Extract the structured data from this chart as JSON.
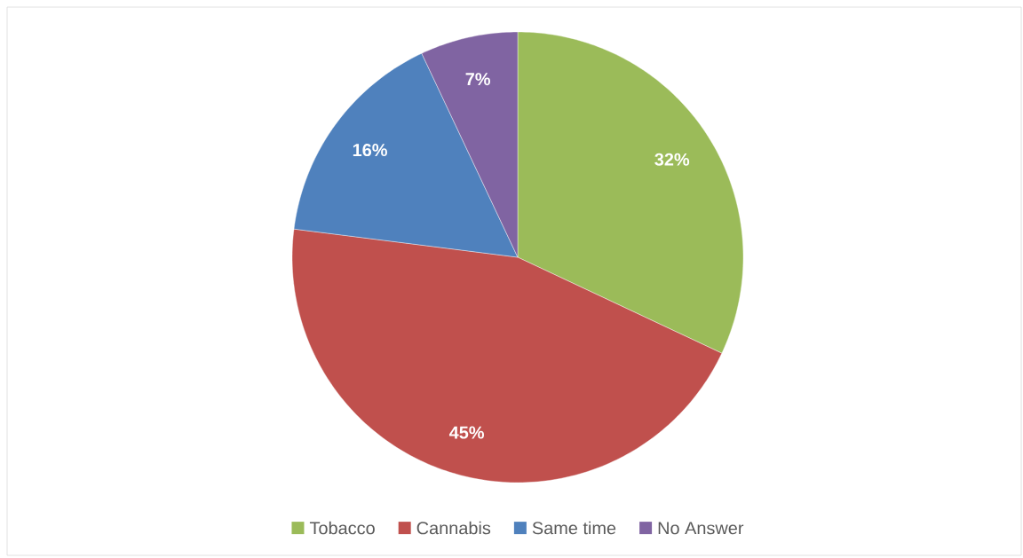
{
  "chart_data": {
    "type": "pie",
    "categories": [
      "Tobacco",
      "Cannabis",
      "Same time",
      "No Answer"
    ],
    "values": [
      32,
      45,
      16,
      7
    ],
    "colors": [
      "#9bbb59",
      "#c0504d",
      "#4f81bd",
      "#8064a2"
    ],
    "value_labels": [
      "32%",
      "45%",
      "16%",
      "7%"
    ],
    "legend": "bottom"
  }
}
